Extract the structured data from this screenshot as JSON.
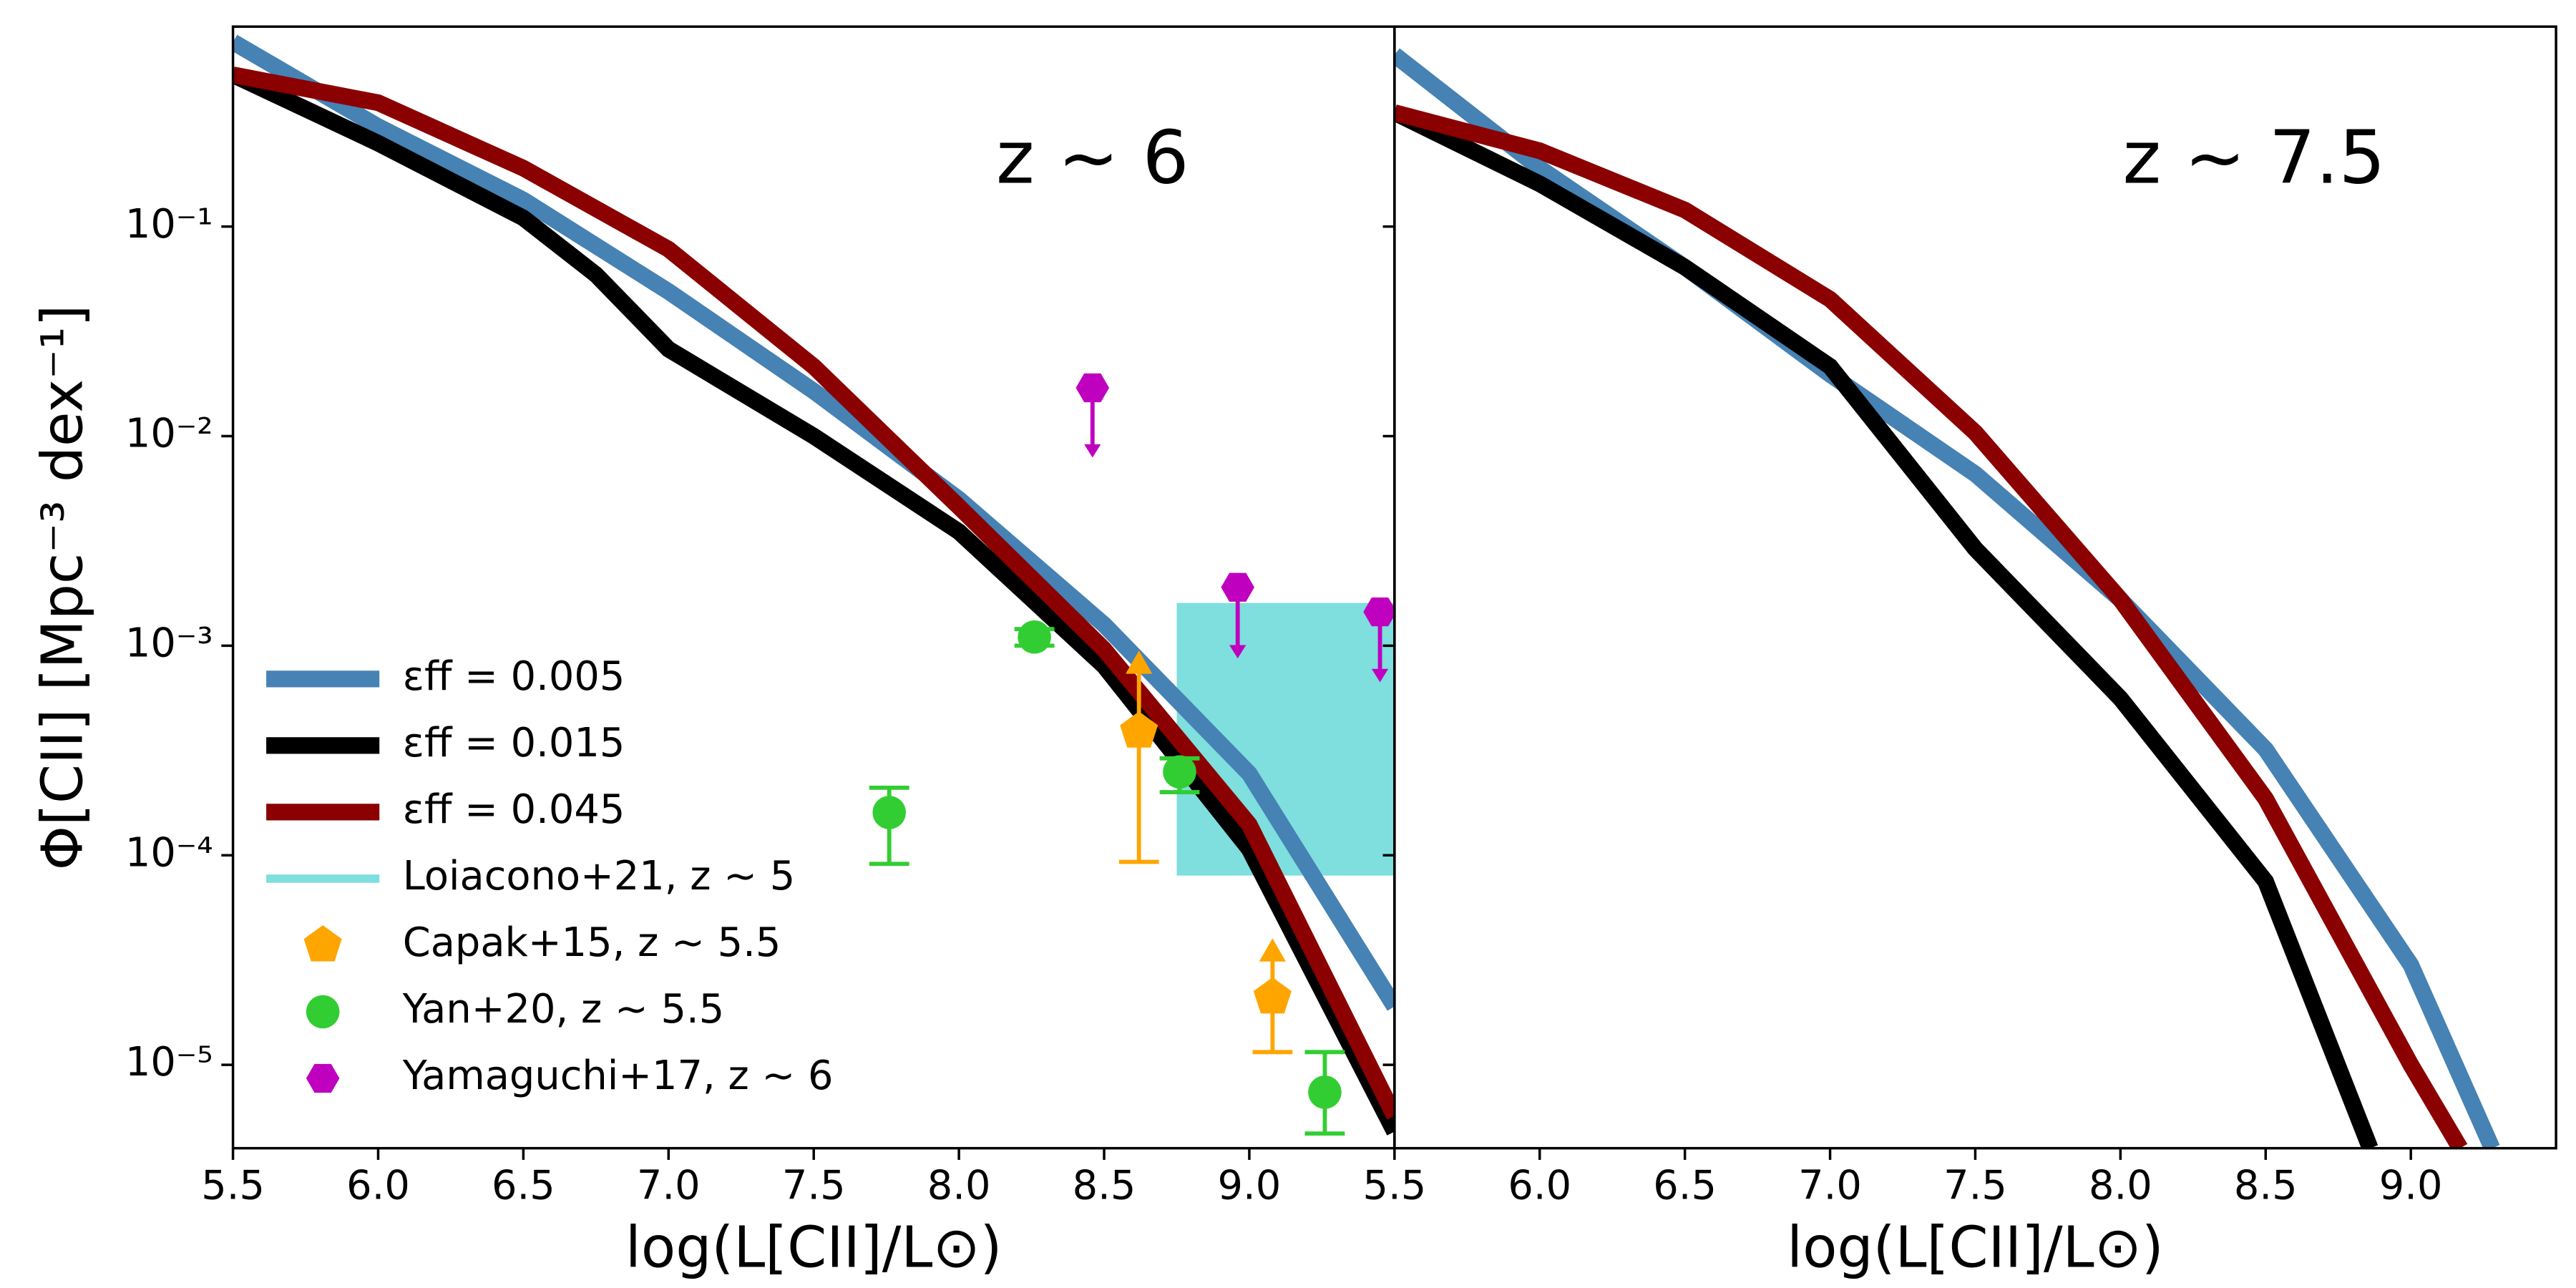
{
  "chart_data": [
    {
      "type": "line",
      "annotation": "z ∼ 6",
      "xlabel": "log(L[CII]/L⊙)",
      "ylabel": "Φ[CII] [Mpc⁻³ dex⁻¹]",
      "xlim": [
        5.5,
        9.5
      ],
      "xticks": [
        5.5,
        {
          "value": 6,
          "label": "6.0"
        },
        6.5,
        {
          "value": 7,
          "label": "7.0"
        },
        7.5,
        {
          "value": 8,
          "label": "8.0"
        },
        8.5,
        {
          "value": 9,
          "label": "9.0"
        }
      ],
      "ylim": [
        4e-06,
        0.9
      ],
      "log_y": true,
      "yticks": [
        {
          "value": 1e-05,
          "label": "10⁻⁵"
        },
        {
          "value": 0.0001,
          "label": "10⁻⁴"
        },
        {
          "value": 0.001,
          "label": "10⁻³"
        },
        {
          "value": 0.01,
          "label": "10⁻²"
        },
        {
          "value": 0.1,
          "label": "10⁻¹"
        }
      ],
      "legend": "lower left",
      "series": [
        {
          "name": "εff = 0.005",
          "color": "#4682b4",
          "x": [
            5.5,
            6,
            6.5,
            7,
            7.5,
            8,
            8.5,
            9,
            9.5
          ],
          "values": [
            0.76,
            0.3,
            0.134,
            0.049,
            0.0164,
            0.005,
            0.00126,
            0.000245,
            1.9e-05
          ]
        },
        {
          "name": "εff = 0.015",
          "color": "#000000",
          "x": [
            5.5,
            6,
            6.5,
            6.75,
            7,
            7.5,
            8,
            8.5,
            9,
            9.5
          ],
          "values": [
            0.53,
            0.25,
            0.11,
            0.059,
            0.026,
            0.01,
            0.0035,
            0.0008,
            0.000107,
            4.8e-06
          ]
        },
        {
          "name": "εff = 0.045",
          "color": "#8b0000",
          "x": [
            5.5,
            6,
            6.5,
            7,
            7.5,
            8,
            8.5,
            9,
            9.5
          ],
          "values": [
            0.53,
            0.39,
            0.19,
            0.078,
            0.0215,
            0.0046,
            0.00096,
            0.00014,
            5.7e-06
          ]
        }
      ],
      "box": {
        "name": "Loiacono+21, z ∼ 5",
        "color": "#7fdede",
        "x": [
          8.75,
          9.5
        ],
        "y": [
          8e-05,
          0.0016
        ]
      },
      "scatter": [
        {
          "name": "Capak+15, z ∼ 5.5",
          "color": "#ffa500",
          "marker": "pentagon",
          "limit": "lower",
          "x": [
            8.62,
            9.08
          ],
          "values": [
            0.00039,
            2.1e-05
          ],
          "ylow": [
            9.3e-05,
            1.15e-05
          ],
          "yhigh": [
            0.00085,
            3.6e-05
          ]
        },
        {
          "name": "Yan+20, z ∼ 5.5",
          "color": "#32cd32",
          "marker": "circle",
          "x": [
            7.76,
            8.26,
            8.76,
            9.26
          ],
          "values": [
            0.00016,
            0.0011,
            0.00025,
            7.4e-06
          ],
          "ylow": [
            9.1e-05,
            0.001,
            0.0002,
            4.7e-06
          ],
          "yhigh": [
            0.00021,
            0.0012,
            0.00029,
            1.15e-05
          ]
        },
        {
          "name": "Yamaguchi+17, z ∼ 6",
          "color": "#bf00bf",
          "marker": "hexagon",
          "limit": "upper",
          "x": [
            8.46,
            8.96,
            9.45
          ],
          "values": [
            0.017,
            0.0019,
            0.00145
          ],
          "ylow": [
            0.0079,
            0.00087,
            0.00067
          ]
        }
      ]
    },
    {
      "type": "line",
      "annotation": "z ∼ 7.5",
      "xlabel": "log(L[CII]/L⊙)",
      "sharey": true,
      "xlim": [
        5.5,
        9.5
      ],
      "xticks": [
        5.5,
        {
          "value": 6,
          "label": "6.0"
        },
        6.5,
        {
          "value": 7,
          "label": "7.0"
        },
        7.5,
        {
          "value": 8,
          "label": "8.0"
        },
        8.5,
        {
          "value": 9,
          "label": "9.0"
        }
      ],
      "series": [
        {
          "color": "#4682b4",
          "x": [
            5.5,
            6,
            6.5,
            7,
            7.5,
            8,
            8.5,
            9,
            9.28
          ],
          "values": [
            0.66,
            0.19,
            0.064,
            0.0197,
            0.0066,
            0.00166,
            0.00032,
            3e-05,
            4e-06
          ]
        },
        {
          "color": "#000000",
          "x": [
            5.5,
            6,
            6.5,
            7,
            7.25,
            7.5,
            8,
            8.5,
            8.86
          ],
          "values": [
            0.35,
            0.16,
            0.064,
            0.0215,
            0.0079,
            0.0029,
            0.00056,
            7.5e-05,
            4e-06
          ]
        },
        {
          "color": "#8b0000",
          "x": [
            5.5,
            6,
            6.5,
            7,
            7.5,
            8,
            8.5,
            9,
            9.17
          ],
          "values": [
            0.35,
            0.23,
            0.12,
            0.045,
            0.0104,
            0.00166,
            0.000186,
            1e-05,
            4e-06
          ]
        }
      ]
    }
  ]
}
